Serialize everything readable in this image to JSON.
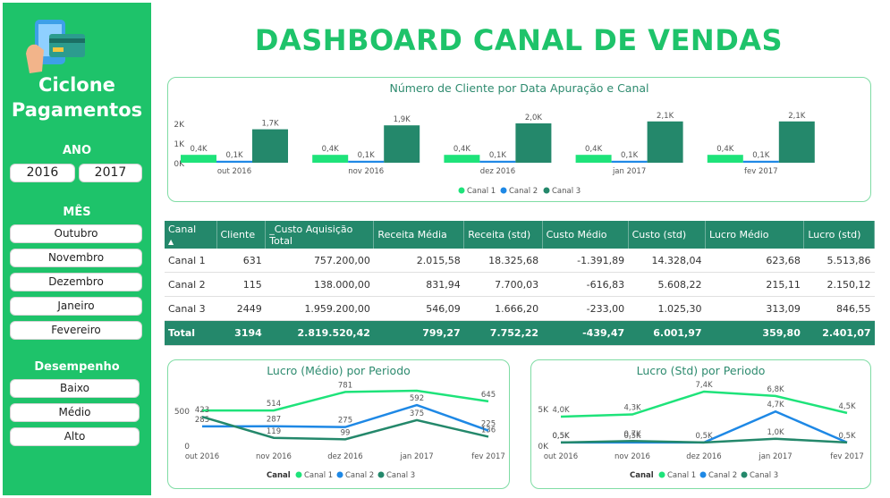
{
  "brand": {
    "line1": "Ciclone",
    "line2": "Pagamentos"
  },
  "filters": {
    "ano_title": "ANO",
    "anos": [
      "2016",
      "2017"
    ],
    "mes_title": "MÊS",
    "meses": [
      "Outubro",
      "Novembro",
      "Dezembro",
      "Janeiro",
      "Fevereiro"
    ],
    "desempenho_title": "Desempenho",
    "desempenho": [
      "Baixo",
      "Médio",
      "Alto"
    ]
  },
  "title": "DASHBOARD CANAL DE VENDAS",
  "colors": {
    "canal1": "#1ee37a",
    "canal2": "#1e88e5",
    "canal3": "#24886b",
    "sidebar": "#1ec36a",
    "header": "#24886b"
  },
  "chart_data": [
    {
      "type": "bar",
      "title": "Número de Cliente por Data Apuração e Canal",
      "categories": [
        "out 2016",
        "nov 2016",
        "dez 2016",
        "jan 2017",
        "fev 2017"
      ],
      "yticks": [
        "2K",
        "1K",
        "0K"
      ],
      "ylim": [
        0,
        2500
      ],
      "legend_position": "bottom",
      "series": [
        {
          "name": "Canal 1",
          "values": [
            400,
            400,
            400,
            400,
            400
          ],
          "labels": [
            "0,4K",
            "0,4K",
            "0,4K",
            "0,4K",
            "0,4K"
          ]
        },
        {
          "name": "Canal 2",
          "values": [
            100,
            100,
            100,
            100,
            100
          ],
          "labels": [
            "0,1K",
            "0,1K",
            "0,1K",
            "0,1K",
            "0,1K"
          ]
        },
        {
          "name": "Canal 3",
          "values": [
            1700,
            1900,
            2000,
            2100,
            2100
          ],
          "labels": [
            "1,7K",
            "1,9K",
            "2,0K",
            "2,1K",
            "2,1K"
          ]
        }
      ]
    },
    {
      "type": "line",
      "title": "Lucro (Médio) por Periodo",
      "categories": [
        "out 2016",
        "nov 2016",
        "dez 2016",
        "jan 2017",
        "fev 2017"
      ],
      "yticks": [
        "500",
        "0"
      ],
      "ylim": [
        0,
        850
      ],
      "legend_title": "Canal",
      "series": [
        {
          "name": "Canal 1",
          "values": [
            514,
            514,
            781,
            799,
            645
          ],
          "labels": [
            "",
            "514",
            "781",
            "",
            "645"
          ]
        },
        {
          "name": "Canal 2",
          "values": [
            285,
            287,
            275,
            592,
            225
          ],
          "labels": [
            "285",
            "287",
            "275",
            "592",
            "225"
          ]
        },
        {
          "name": "Canal 3",
          "values": [
            423,
            119,
            99,
            375,
            136
          ],
          "labels": [
            "423",
            "119",
            "99",
            "375",
            "136"
          ]
        }
      ]
    },
    {
      "type": "line",
      "title": "Lucro (Std) por Periodo",
      "categories": [
        "out 2016",
        "nov 2016",
        "dez 2016",
        "jan 2017",
        "fev 2017"
      ],
      "yticks": [
        "5K",
        "0K"
      ],
      "ylim": [
        0,
        8000
      ],
      "legend_title": "Canal",
      "series": [
        {
          "name": "Canal 1",
          "values": [
            4000,
            4300,
            7400,
            6800,
            4500
          ],
          "labels": [
            "4,0K",
            "4,3K",
            "7,4K",
            "6,8K",
            "4,5K"
          ]
        },
        {
          "name": "Canal 2",
          "values": [
            500,
            500,
            500,
            4700,
            500
          ],
          "labels": [
            "0,5K",
            "0,5K",
            "0,5K",
            "4,7K",
            "0,5K"
          ]
        },
        {
          "name": "Canal 3",
          "values": [
            500,
            700,
            500,
            1000,
            500
          ],
          "labels": [
            "0,5K",
            "0,7K",
            "",
            "1,0K",
            ""
          ]
        }
      ]
    }
  ],
  "table": {
    "headers": [
      "Canal",
      "Cliente",
      "_Custo Aquisição Total",
      "Receita Média",
      "Receita (std)",
      "Custo Médio",
      "Custo (std)",
      "Lucro Médio",
      "Lucro (std)"
    ],
    "rows": [
      [
        "Canal 1",
        "631",
        "757.200,00",
        "2.015,58",
        "18.325,68",
        "-1.391,89",
        "14.328,04",
        "623,68",
        "5.513,86"
      ],
      [
        "Canal 2",
        "115",
        "138.000,00",
        "831,94",
        "7.700,03",
        "-616,83",
        "5.608,22",
        "215,11",
        "2.150,12"
      ],
      [
        "Canal 3",
        "2449",
        "1.959.200,00",
        "546,09",
        "1.666,20",
        "-233,00",
        "1.025,30",
        "313,09",
        "846,55"
      ]
    ],
    "total": [
      "Total",
      "3194",
      "2.819.520,42",
      "799,27",
      "7.752,22",
      "-439,47",
      "6.001,97",
      "359,80",
      "2.401,07"
    ]
  }
}
